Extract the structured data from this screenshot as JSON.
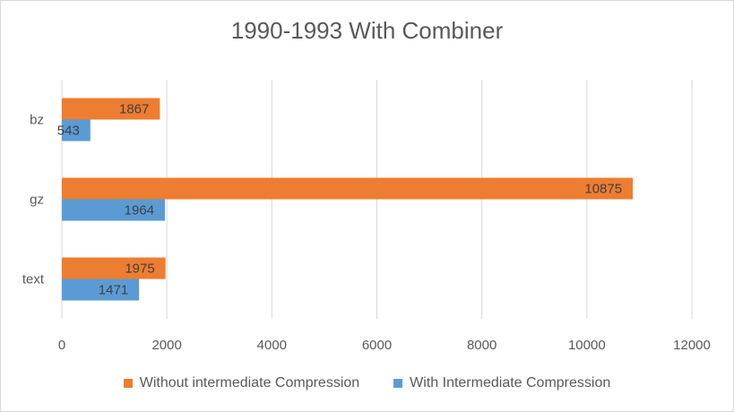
{
  "chart_data": {
    "type": "bar",
    "orientation": "horizontal",
    "title": "1990-1993 With Combiner",
    "categories": [
      "bz",
      "gz",
      "text"
    ],
    "series": [
      {
        "name": "Without intermediate Compression",
        "color": "#ED7D31",
        "values": [
          1867,
          10875,
          1975
        ]
      },
      {
        "name": "With Intermediate Compression",
        "color": "#5B9BD5",
        "values": [
          543,
          1964,
          1471
        ]
      }
    ],
    "xlim": [
      0,
      12000
    ],
    "xticks": [
      0,
      2000,
      4000,
      6000,
      8000,
      10000,
      12000
    ],
    "grid": true,
    "legend_position": "bottom"
  }
}
